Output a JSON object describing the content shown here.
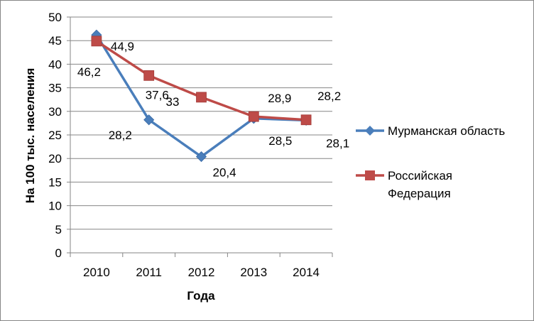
{
  "chart_data": {
    "type": "line",
    "xlabel": "Года",
    "ylabel": "На 100 тыс. населения",
    "categories": [
      "2010",
      "2011",
      "2012",
      "2013",
      "2014"
    ],
    "ylim": [
      0,
      50
    ],
    "yticks": [
      "0",
      "5",
      "10",
      "15",
      "20",
      "25",
      "30",
      "35",
      "40",
      "45",
      "50"
    ],
    "grid": true,
    "legend_position": "right",
    "series": [
      {
        "name": "Мурманская область",
        "values": [
          46.2,
          28.2,
          20.4,
          28.5,
          28.1
        ],
        "labels": [
          "46,2",
          "28,2",
          "20,4",
          "28,5",
          "28,1"
        ],
        "color": "#4a7ebb",
        "marker": "diamond"
      },
      {
        "name": "Российская Федерация",
        "legend_lines": [
          "Российская",
          "Федерация"
        ],
        "values": [
          44.9,
          37.6,
          33,
          28.9,
          28.2
        ],
        "labels": [
          "44,9",
          "37,6",
          "33",
          "28,9",
          "28,2"
        ],
        "color": "#be4b48",
        "marker": "square"
      }
    ]
  }
}
